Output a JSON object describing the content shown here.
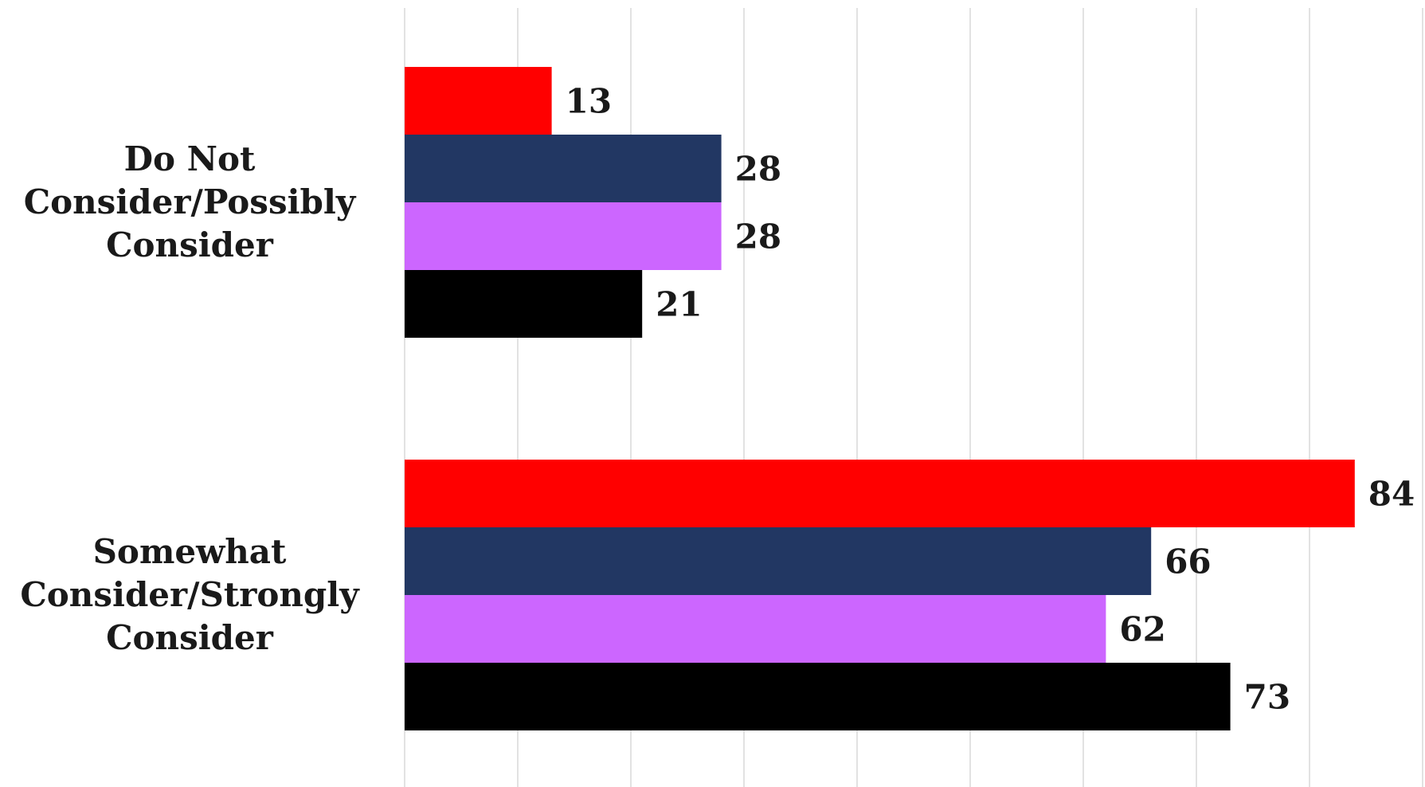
{
  "chart_data": {
    "type": "bar",
    "orientation": "horizontal",
    "categories": [
      [
        "Do Not",
        "Consider/Possibly",
        "Consider"
      ],
      [
        "Somewhat",
        "Consider/Strongly",
        "Consider"
      ]
    ],
    "series": [
      {
        "color": "#ff0000",
        "values": [
          13,
          84
        ]
      },
      {
        "color": "#223763",
        "values": [
          28,
          66
        ]
      },
      {
        "color": "#cc66ff",
        "values": [
          28,
          62
        ]
      },
      {
        "color": "#000000",
        "values": [
          21,
          73
        ]
      }
    ],
    "xlim": [
      0,
      90
    ],
    "x_grid_step": 10,
    "grid": true,
    "legend": "none",
    "data_labels": true,
    "title": "",
    "xlabel": "",
    "ylabel": ""
  }
}
